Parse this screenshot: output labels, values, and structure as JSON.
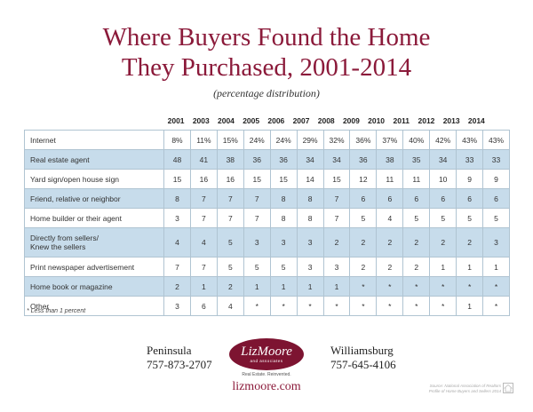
{
  "title_line1": "Where Buyers Found the Home",
  "title_line2": "They Purchased, 2001-2014",
  "subtitle": "(percentage distribution)",
  "years": [
    "2001",
    "2003",
    "2004",
    "2005",
    "2006",
    "2007",
    "2008",
    "2009",
    "2010",
    "2011",
    "2012",
    "2013",
    "2014"
  ],
  "rows": [
    {
      "label": [
        "Internet"
      ],
      "values": [
        "8%",
        "11%",
        "15%",
        "24%",
        "24%",
        "29%",
        "32%",
        "36%",
        "37%",
        "40%",
        "42%",
        "43%",
        "43%"
      ],
      "shaded": false
    },
    {
      "label": [
        "Real estate agent"
      ],
      "values": [
        "48",
        "41",
        "38",
        "36",
        "36",
        "34",
        "34",
        "36",
        "38",
        "35",
        "34",
        "33",
        "33"
      ],
      "shaded": true
    },
    {
      "label": [
        "Yard sign/open house sign"
      ],
      "values": [
        "15",
        "16",
        "16",
        "15",
        "15",
        "14",
        "15",
        "12",
        "11",
        "11",
        "10",
        "9",
        "9"
      ],
      "shaded": false
    },
    {
      "label": [
        "Friend, relative or neighbor"
      ],
      "values": [
        "8",
        "7",
        "7",
        "7",
        "8",
        "8",
        "7",
        "6",
        "6",
        "6",
        "6",
        "6",
        "6"
      ],
      "shaded": true
    },
    {
      "label": [
        "Home builder or their agent"
      ],
      "values": [
        "3",
        "7",
        "7",
        "7",
        "8",
        "8",
        "7",
        "5",
        "4",
        "5",
        "5",
        "5",
        "5"
      ],
      "shaded": false
    },
    {
      "label": [
        "Directly from sellers/",
        "Knew the sellers"
      ],
      "values": [
        "4",
        "4",
        "5",
        "3",
        "3",
        "3",
        "2",
        "2",
        "2",
        "2",
        "2",
        "2",
        "3"
      ],
      "shaded": true
    },
    {
      "label": [
        "Print newspaper advertisement"
      ],
      "values": [
        "7",
        "7",
        "5",
        "5",
        "5",
        "3",
        "3",
        "2",
        "2",
        "2",
        "1",
        "1",
        "1"
      ],
      "shaded": false
    },
    {
      "label": [
        "Home book or magazine"
      ],
      "values": [
        "2",
        "1",
        "2",
        "1",
        "1",
        "1",
        "1",
        "*",
        "*",
        "*",
        "*",
        "*",
        "*"
      ],
      "shaded": true
    },
    {
      "label": [
        "Other"
      ],
      "values": [
        "3",
        "6",
        "4",
        "*",
        "*",
        "*",
        "*",
        "*",
        "*",
        "*",
        "*",
        "1",
        "*"
      ],
      "shaded": false
    }
  ],
  "footnote": "* Less than 1 percent",
  "offices": {
    "peninsula": {
      "name": "Peninsula",
      "phone": "757-873-2707"
    },
    "williamsburg": {
      "name": "Williamsburg",
      "phone": "757-645-4106"
    }
  },
  "logo": {
    "brand": "LizMoore",
    "sub": "and associates"
  },
  "tagline": "Real Estate. Reinvented.",
  "website": "lizmoore.com",
  "source_line1": "Source: National Association of Realtors",
  "source_line2": "Profile of Home Buyers and Sellers 2014",
  "colors": {
    "title": "#8b1a3a",
    "shade": "#c7dceb",
    "logo_bg": "#7d1431"
  },
  "icon": "equal-housing-icon"
}
